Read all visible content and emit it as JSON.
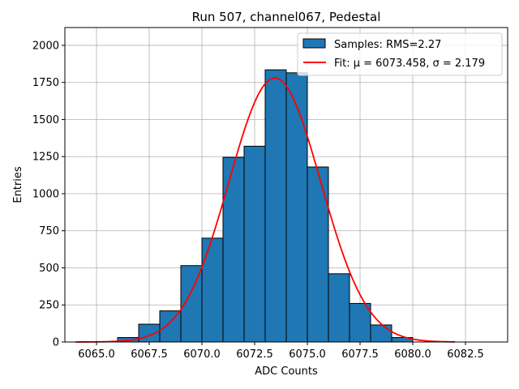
{
  "chart_data": {
    "type": "bar",
    "title": "Run 507, channel067, Pedestal",
    "xlabel": "ADC Counts",
    "ylabel": "Entries",
    "xlim": [
      6063.5,
      6084.5
    ],
    "ylim": [
      0,
      2120
    ],
    "xticks": [
      6065.0,
      6067.5,
      6070.0,
      6072.5,
      6075.0,
      6077.5,
      6080.0,
      6082.5
    ],
    "xtick_labels": [
      "6065.0",
      "6067.5",
      "6070.0",
      "6072.5",
      "6075.0",
      "6077.5",
      "6080.0",
      "6082.5"
    ],
    "yticks": [
      0,
      250,
      500,
      750,
      1000,
      1250,
      1500,
      1750,
      2000
    ],
    "ytick_labels": [
      "0",
      "250",
      "500",
      "750",
      "1000",
      "1250",
      "1500",
      "1750",
      "2000"
    ],
    "grid": true,
    "legend_position": "top-right",
    "histogram": {
      "name": "Samples: RMS=2.27",
      "color": "#1f77b4",
      "edge_color": "#000000",
      "bin_edges": [
        6066,
        6067,
        6068,
        6069,
        6070,
        6071,
        6072,
        6073,
        6074,
        6075,
        6076,
        6077,
        6078,
        6079,
        6080
      ],
      "counts": [
        30,
        120,
        210,
        515,
        700,
        1245,
        1320,
        1835,
        1815,
        1180,
        460,
        260,
        115,
        30
      ]
    },
    "fit": {
      "name": "Fit: μ = 6073.458, σ = 2.179",
      "color": "#ff0000",
      "mu": 6073.458,
      "sigma": 2.179,
      "amplitude": 1780,
      "x_range": [
        6064,
        6082
      ]
    }
  }
}
